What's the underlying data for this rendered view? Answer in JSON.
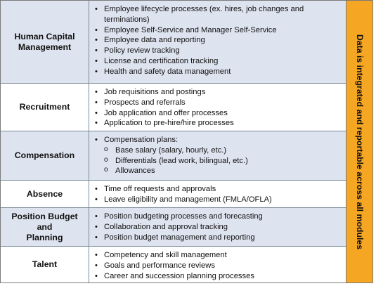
{
  "rows": [
    {
      "category": [
        "Human Capital",
        "Management"
      ],
      "items": [
        {
          "level": 1,
          "text": "Employee lifecycle processes (ex. hires, job changes and"
        },
        {
          "level": 0,
          "text": "terminations)"
        },
        {
          "level": 1,
          "text": "Employee Self-Service and Manager Self-Service"
        },
        {
          "level": 1,
          "text": "Employee data and reporting"
        },
        {
          "level": 1,
          "text": "Policy review tracking"
        },
        {
          "level": 1,
          "text": "License and certification tracking"
        },
        {
          "level": 1,
          "text": "Health and safety data management"
        }
      ]
    },
    {
      "category": [
        "Recruitment"
      ],
      "items": [
        {
          "level": 1,
          "text": "Job requisitions and postings"
        },
        {
          "level": 1,
          "text": "Prospects and referrals"
        },
        {
          "level": 1,
          "text": "Job application and offer processes"
        },
        {
          "level": 1,
          "text": "Application to pre-hire/hire processes"
        }
      ]
    },
    {
      "category": [
        "Compensation"
      ],
      "items": [
        {
          "level": 1,
          "text": "Compensation plans:"
        },
        {
          "level": 2,
          "text": "Base salary (salary, hourly, etc.)"
        },
        {
          "level": 2,
          "text": "Differentials (lead work, bilingual, etc.)"
        },
        {
          "level": 2,
          "text": "Allowances"
        }
      ]
    },
    {
      "category": [
        "Absence"
      ],
      "items": [
        {
          "level": 1,
          "text": "Time off requests and approvals"
        },
        {
          "level": 1,
          "text": "Leave eligibility and management (FMLA/OFLA)"
        }
      ]
    },
    {
      "category": [
        "Position Budget and",
        "Planning"
      ],
      "items": [
        {
          "level": 1,
          "text": "Position budgeting processes and forecasting"
        },
        {
          "level": 1,
          "text": "Collaboration and approval tracking"
        },
        {
          "level": 1,
          "text": "Position budget management and reporting"
        }
      ]
    },
    {
      "category": [
        "Talent"
      ],
      "items": [
        {
          "level": 1,
          "text": "Competency and skill management"
        },
        {
          "level": 1,
          "text": "Goals and performance reviews"
        },
        {
          "level": 1,
          "text": "Career and succession planning processes"
        }
      ]
    }
  ],
  "sidebar": {
    "text": "Data is integrated and reportable across all modules",
    "color": "#f5a623"
  },
  "colors": {
    "shaded_row": "#dde3ef",
    "border": "#7b8a99"
  }
}
